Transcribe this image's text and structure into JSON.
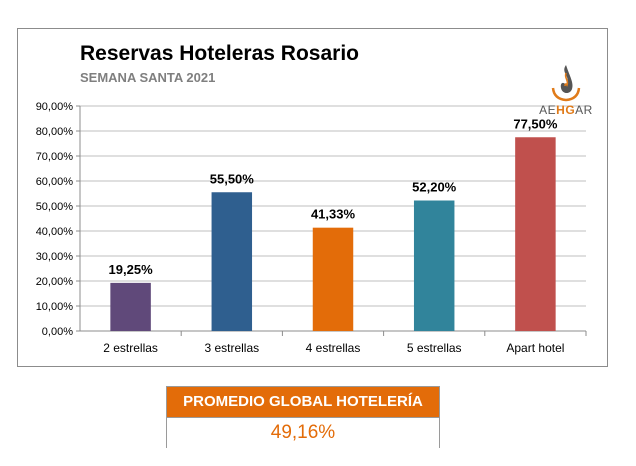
{
  "chart_data": {
    "type": "bar",
    "title": "Reservas Hoteleras Rosario",
    "subtitle": "SEMANA SANTA 2021",
    "categories": [
      "2 estrellas",
      "3 estrellas",
      "4 estrellas",
      "5 estrellas",
      "Apart hotel"
    ],
    "values": [
      19.25,
      55.5,
      41.33,
      52.2,
      77.5
    ],
    "data_labels": [
      "19,25%",
      "55,50%",
      "41,33%",
      "52,20%",
      "77,50%"
    ],
    "colors": [
      "#60497a",
      "#2f5f8f",
      "#e36c09",
      "#31849b",
      "#c0504d"
    ],
    "ylim": [
      0,
      90
    ],
    "yticks": [
      "0,00%",
      "10,00%",
      "20,00%",
      "30,00%",
      "40,00%",
      "50,00%",
      "60,00%",
      "70,00%",
      "80,00%",
      "90,00%"
    ],
    "xlabel": "",
    "ylabel": "",
    "grid": true,
    "legend": "none"
  },
  "logo": {
    "icon": "flame-icon",
    "prefix": "AE",
    "highlight": "HG",
    "suffix": "AR"
  },
  "summary": {
    "label": "PROMEDIO GLOBAL HOTELERÍA",
    "value": "49,16%"
  }
}
